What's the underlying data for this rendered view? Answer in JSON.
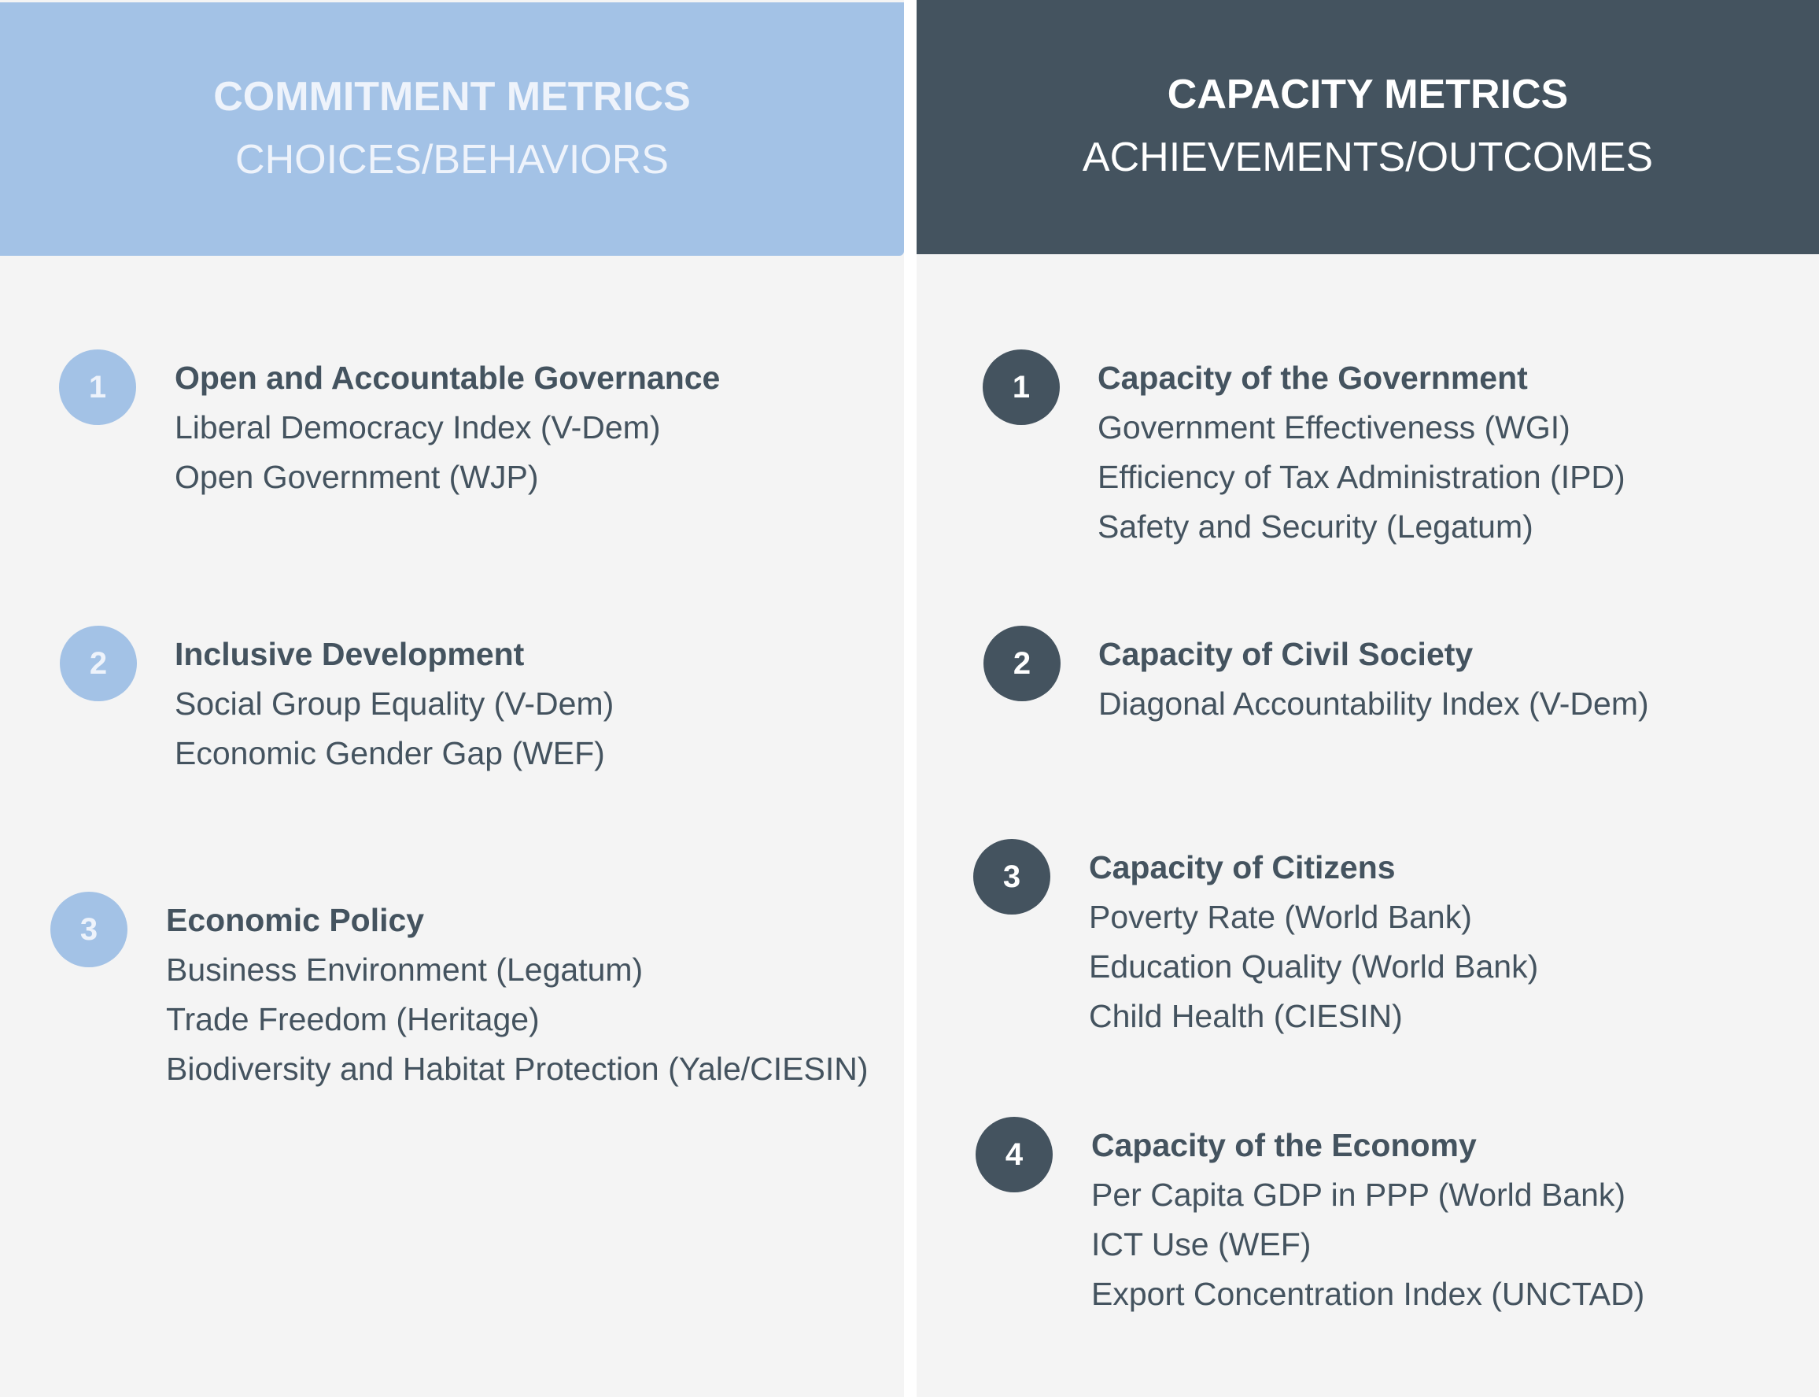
{
  "commitment": {
    "title": "COMMITMENT METRICS",
    "subtitle": "CHOICES/BEHAVIORS",
    "groups": [
      {
        "number": "1",
        "title": "Open and Accountable Governance",
        "items": [
          "Liberal Democracy Index (V-Dem)",
          "Open Government (WJP)"
        ]
      },
      {
        "number": "2",
        "title": "Inclusive Development",
        "items": [
          "Social Group Equality (V-Dem)",
          "Economic Gender Gap (WEF)"
        ]
      },
      {
        "number": "3",
        "title": "Economic Policy",
        "items": [
          "Business Environment (Legatum)",
          "Trade Freedom (Heritage)",
          "Biodiversity and Habitat Protection (Yale/CIESIN)"
        ]
      }
    ]
  },
  "capacity": {
    "title": "CAPACITY METRICS",
    "subtitle": "ACHIEVEMENTS/OUTCOMES",
    "groups": [
      {
        "number": "1",
        "title": "Capacity of the Government",
        "items": [
          "Government Effectiveness (WGI)",
          "Efficiency of Tax Administration (IPD)",
          "Safety and Security (Legatum)"
        ]
      },
      {
        "number": "2",
        "title": "Capacity of Civil Society",
        "items": [
          "Diagonal Accountability Index (V-Dem)"
        ]
      },
      {
        "number": "3",
        "title": "Capacity of Citizens",
        "items": [
          "Poverty Rate (World Bank)",
          "Education Quality (World Bank)",
          "Child Health (CIESIN)"
        ]
      },
      {
        "number": "4",
        "title": "Capacity of the Economy",
        "items": [
          "Per Capita GDP in PPP (World Bank)",
          "ICT Use (WEF)",
          "Export Concentration Index (UNCTAD)"
        ]
      }
    ]
  },
  "colors": {
    "commitment_accent": "#a3c2e6",
    "capacity_accent": "#44535f",
    "text": "#44535f",
    "panel_bg": "#f4f4f4"
  }
}
